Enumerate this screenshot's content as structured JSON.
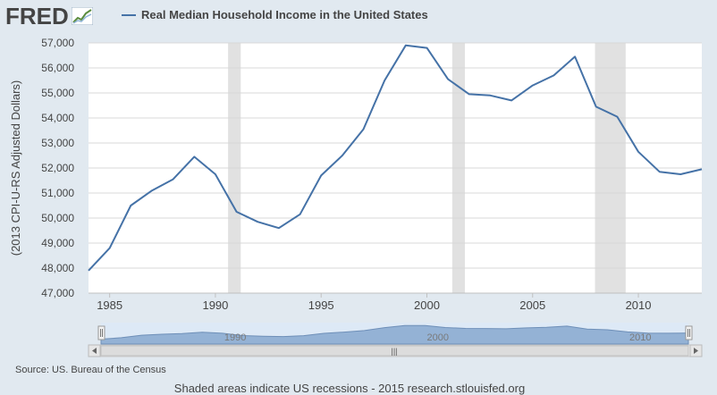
{
  "header": {
    "logo_text": "FRED",
    "legend_label": "Real Median Household Income in the United States"
  },
  "colors": {
    "background": "#e1e9f0",
    "plot_background": "#ffffff",
    "line": "#4572a7",
    "recession": "#e1e1e1",
    "logo": "#444444",
    "text": "#444444"
  },
  "footer": {
    "source": "Source: US. Bureau of the Census",
    "note": "Shaded areas indicate US recessions - 2015 research.stlouisfed.org"
  },
  "navigator": {
    "labels": [
      "1990",
      "2000",
      "2010"
    ],
    "scroll_grip": "|||"
  },
  "chart_data": {
    "type": "line",
    "title": "Real Median Household Income in the United States",
    "ylabel": "(2013 CPI-U-RS Adjusted Dollars)",
    "xlabel": "",
    "xlim": [
      1984,
      2013
    ],
    "ylim": [
      47000,
      57000
    ],
    "x_ticks": [
      "1985",
      "1990",
      "1995",
      "2000",
      "2005",
      "2010"
    ],
    "y_ticks": [
      "47,000",
      "48,000",
      "49,000",
      "50,000",
      "51,000",
      "52,000",
      "53,000",
      "54,000",
      "55,000",
      "56,000",
      "57,000"
    ],
    "grid": true,
    "recessions": [
      [
        1990.6,
        1991.2
      ],
      [
        2001.2,
        2001.8
      ],
      [
        2007.95,
        2009.4
      ]
    ],
    "series": [
      {
        "name": "Real Median Household Income in the United States",
        "x": [
          1984,
          1985,
          1986,
          1987,
          1988,
          1989,
          1990,
          1991,
          1992,
          1993,
          1994,
          1995,
          1996,
          1997,
          1998,
          1999,
          2000,
          2001,
          2002,
          2003,
          2004,
          2005,
          2006,
          2007,
          2008,
          2009,
          2010,
          2011,
          2012,
          2013
        ],
        "y": [
          47900,
          48800,
          50500,
          51100,
          51550,
          52450,
          51750,
          50250,
          49850,
          49600,
          50150,
          51700,
          52500,
          53550,
          55500,
          56900,
          56800,
          55550,
          54950,
          54900,
          54700,
          55300,
          55700,
          56450,
          54450,
          54050,
          52650,
          51850,
          51750,
          51950
        ]
      }
    ]
  }
}
